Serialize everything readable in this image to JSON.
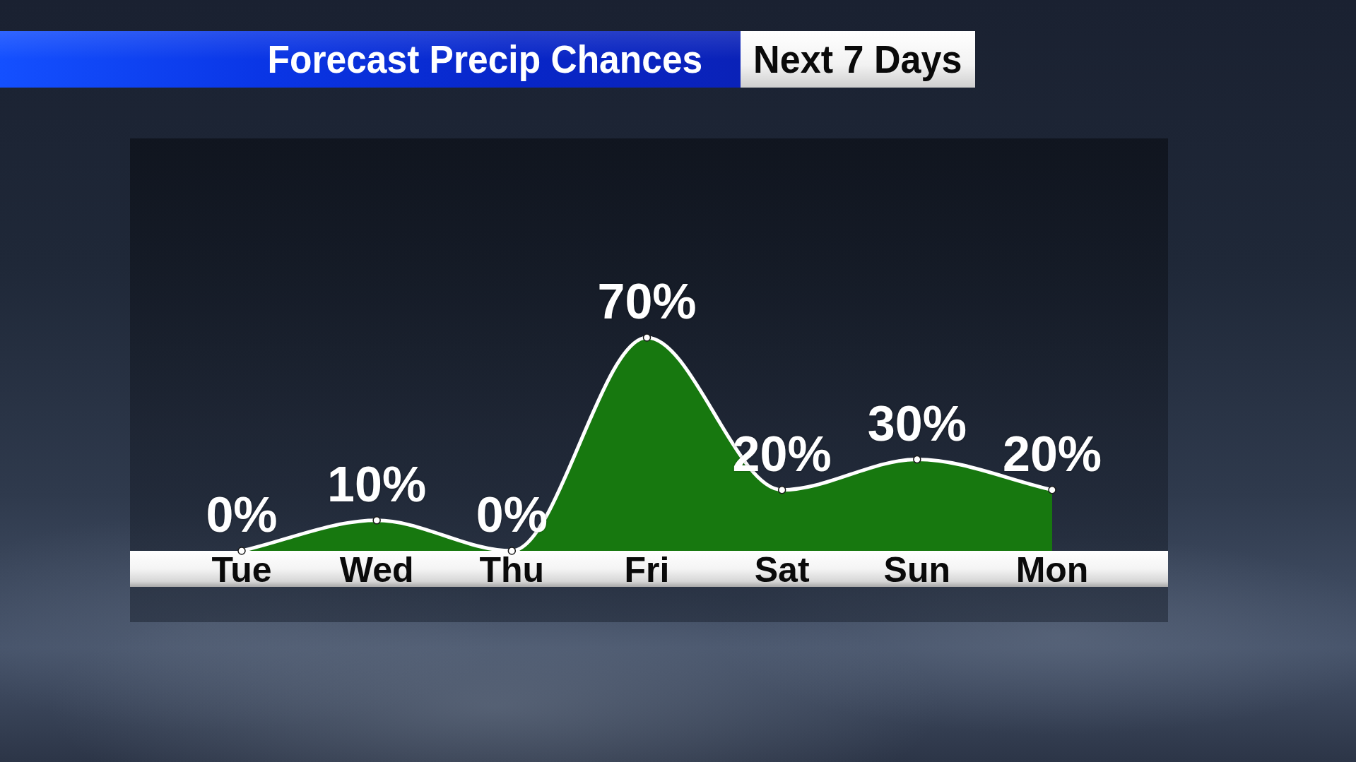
{
  "chart_data": {
    "type": "area",
    "title": "Forecast Precip Chances",
    "subtitle": "Next 7 Days",
    "categories": [
      "Tue",
      "Wed",
      "Thu",
      "Fri",
      "Sat",
      "Sun",
      "Mon"
    ],
    "values": [
      0,
      10,
      0,
      70,
      20,
      30,
      20
    ],
    "value_labels": [
      "0%",
      "10%",
      "0%",
      "70%",
      "20%",
      "30%",
      "20%"
    ],
    "color": "#17780f",
    "marker": "circle",
    "tick_labels": "x"
  }
}
